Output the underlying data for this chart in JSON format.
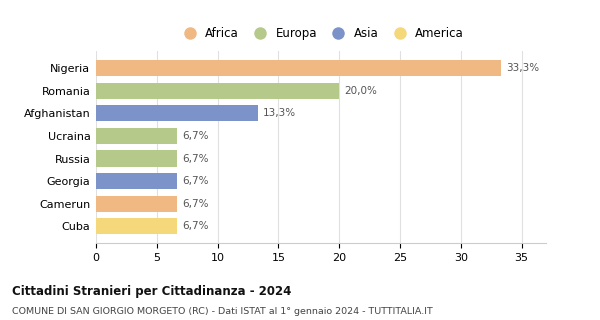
{
  "countries": [
    "Nigeria",
    "Romania",
    "Afghanistan",
    "Ucraina",
    "Russia",
    "Georgia",
    "Camerun",
    "Cuba"
  ],
  "values": [
    33.3,
    20.0,
    13.3,
    6.7,
    6.7,
    6.7,
    6.7,
    6.7
  ],
  "labels": [
    "33,3%",
    "20,0%",
    "13,3%",
    "6,7%",
    "6,7%",
    "6,7%",
    "6,7%",
    "6,7%"
  ],
  "colors": [
    "#F0B882",
    "#B5C98A",
    "#7B93C8",
    "#B5C98A",
    "#B5C98A",
    "#7B93C8",
    "#F0B882",
    "#F5D87A"
  ],
  "legend_labels": [
    "Africa",
    "Europa",
    "Asia",
    "America"
  ],
  "legend_colors": [
    "#F0B882",
    "#B5C98A",
    "#7B93C8",
    "#F5D87A"
  ],
  "title": "Cittadini Stranieri per Cittadinanza - 2024",
  "subtitle": "COMUNE DI SAN GIORGIO MORGETO (RC) - Dati ISTAT al 1° gennaio 2024 - TUTTITALIA.IT",
  "xlim": [
    0,
    37
  ],
  "xticks": [
    0,
    5,
    10,
    15,
    20,
    25,
    30,
    35
  ],
  "background_color": "#ffffff",
  "grid_color": "#e0e0e0"
}
